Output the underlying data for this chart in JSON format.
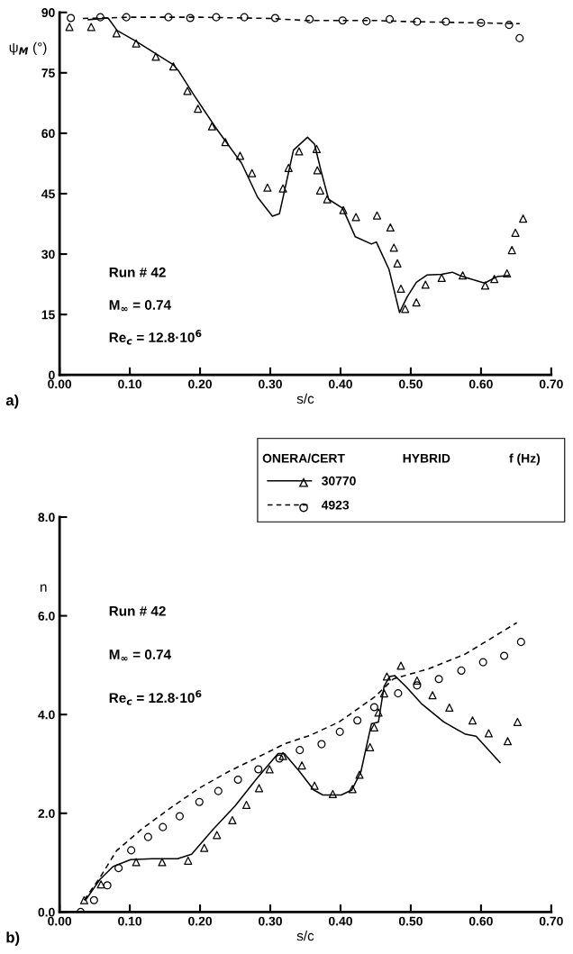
{
  "chart_data": [
    {
      "type": "scatter",
      "xlabel": "s/c",
      "ylabel": "ψ$_{M}$ (°)",
      "xlim": [
        0,
        0.7
      ],
      "ylim": [
        0,
        90
      ],
      "xticks": [
        {
          "value": 0,
          "label": "0.00"
        },
        {
          "value": 0.1,
          "label": "0.10"
        },
        {
          "value": 0.2,
          "label": "0.20"
        },
        {
          "value": 0.3,
          "label": "0.30"
        },
        {
          "value": 0.4,
          "label": "0.40"
        },
        {
          "value": 0.5,
          "label": "0.50"
        },
        {
          "value": 0.6,
          "label": "0.60"
        },
        {
          "value": 0.7,
          "label": "0.70"
        }
      ],
      "yticks": [
        0,
        15,
        30,
        45,
        60,
        75,
        90
      ],
      "annotations": [
        "a)",
        "Run # 42",
        "M$_{∞}$ = 0.74",
        "Re$_{c}$ = 12.8·10$^{6}$"
      ],
      "series": [
        {
          "type": "scatter",
          "marker": "triangle",
          "color": "#000000",
          "x": [
            0.014,
            0.045,
            0.081,
            0.109,
            0.137,
            0.162,
            0.182,
            0.197,
            0.217,
            0.236,
            0.257,
            0.274,
            0.296,
            0.318,
            0.326,
            0.341,
            0.366,
            0.367,
            0.371,
            0.381,
            0.404,
            0.422,
            0.452,
            0.471,
            0.476,
            0.481,
            0.486,
            0.492,
            0.508,
            0.521,
            0.544,
            0.574,
            0.606,
            0.619,
            0.637,
            0.644,
            0.649,
            0.66
          ],
          "values": [
            86.4,
            86.4,
            84.8,
            82.3,
            79.0,
            76.6,
            70.5,
            66.1,
            61.7,
            57.8,
            54.4,
            50.1,
            46.5,
            46.3,
            51.4,
            55.5,
            56.1,
            50.8,
            45.8,
            43.6,
            40.9,
            39.2,
            39.6,
            36.6,
            31.6,
            27.7,
            21.4,
            16.4,
            18.0,
            22.4,
            24.1,
            24.7,
            22.2,
            23.8,
            25.2,
            31.0,
            35.3,
            38.8
          ]
        },
        {
          "type": "scatter",
          "marker": "circle",
          "color": "#000000",
          "x": [
            0.016,
            0.058,
            0.095,
            0.155,
            0.186,
            0.223,
            0.263,
            0.307,
            0.356,
            0.403,
            0.437,
            0.47,
            0.509,
            0.55,
            0.6,
            0.64,
            0.655
          ],
          "values": [
            88.6,
            88.8,
            88.8,
            88.8,
            88.6,
            88.8,
            88.8,
            88.6,
            88.3,
            88.0,
            87.8,
            88.3,
            87.7,
            87.7,
            87.4,
            86.9,
            83.6
          ]
        },
        {
          "type": "line",
          "line_style": "solid",
          "color": "#000000",
          "x": [
            0.041,
            0.069,
            0.082,
            0.109,
            0.162,
            0.169,
            0.192,
            0.223,
            0.259,
            0.282,
            0.303,
            0.313,
            0.333,
            0.353,
            0.363,
            0.372,
            0.383,
            0.403,
            0.421,
            0.444,
            0.451,
            0.469,
            0.484,
            0.495,
            0.508,
            0.523,
            0.544,
            0.559,
            0.574,
            0.605,
            0.623,
            0.639
          ],
          "values": [
            88.2,
            88.6,
            85.5,
            82.8,
            77.0,
            75.6,
            69.3,
            61.2,
            52.6,
            44.1,
            39.4,
            40.0,
            55.8,
            59.0,
            57.3,
            50.8,
            43.6,
            41.4,
            34.3,
            32.5,
            33.0,
            26.2,
            15.5,
            19.4,
            23.0,
            24.8,
            25.0,
            25.5,
            24.4,
            22.8,
            24.4,
            24.7
          ]
        },
        {
          "type": "line",
          "line_style": "dashed",
          "color": "#000000",
          "x": [
            0.033,
            0.1,
            0.2,
            0.3,
            0.35,
            0.45,
            0.5,
            0.6,
            0.655
          ],
          "values": [
            88.5,
            88.8,
            88.8,
            88.5,
            88.0,
            88.0,
            87.7,
            87.4,
            87.2
          ]
        }
      ]
    },
    {
      "type": "scatter",
      "xlabel": "s/c",
      "ylabel": "n",
      "xlim": [
        0,
        0.7
      ],
      "ylim": [
        0,
        8
      ],
      "xticks": [
        {
          "value": 0,
          "label": "0.00"
        },
        {
          "value": 0.1,
          "label": "0.10"
        },
        {
          "value": 0.2,
          "label": "0.20"
        },
        {
          "value": 0.3,
          "label": "0.30"
        },
        {
          "value": 0.4,
          "label": "0.40"
        },
        {
          "value": 0.5,
          "label": "0.50"
        },
        {
          "value": 0.6,
          "label": "0.60"
        },
        {
          "value": 0.7,
          "label": "0.70"
        }
      ],
      "yticks": [
        {
          "value": 0,
          "label": "0.0"
        },
        {
          "value": 2,
          "label": "2.0"
        },
        {
          "value": 4,
          "label": "4.0"
        },
        {
          "value": 6,
          "label": "6.0"
        },
        {
          "value": 8,
          "label": "8.0"
        }
      ],
      "legend": "top right",
      "annotations": [
        "b)",
        "Run # 42",
        "M$_{∞}$ = 0.74",
        "Re$_{c}$ = 12.8·10$^{6}$",
        "ONERA/CERT",
        "HYBRID",
        "f (Hz)"
      ],
      "series": [
        {
          "type": "scatter",
          "marker": "triangle",
          "color": "#000000",
          "x": [
            0.035,
            0.059,
            0.109,
            0.146,
            0.183,
            0.206,
            0.224,
            0.246,
            0.266,
            0.284,
            0.299,
            0.318,
            0.345,
            0.363,
            0.389,
            0.417,
            0.427,
            0.442,
            0.448,
            0.454,
            0.462,
            0.466,
            0.486,
            0.509,
            0.531,
            0.555,
            0.588,
            0.611,
            0.638,
            0.652
          ],
          "values": [
            0.24,
            0.56,
            1.01,
            1.01,
            1.04,
            1.3,
            1.56,
            1.86,
            2.17,
            2.51,
            2.89,
            3.16,
            2.97,
            2.56,
            2.39,
            2.49,
            2.78,
            3.34,
            3.74,
            4.04,
            4.43,
            4.77,
            4.99,
            4.69,
            4.39,
            4.14,
            3.88,
            3.62,
            3.46,
            3.85
          ]
        },
        {
          "type": "scatter",
          "marker": "circle",
          "color": "#000000",
          "x": [
            0.03,
            0.049,
            0.068,
            0.084,
            0.102,
            0.126,
            0.147,
            0.171,
            0.199,
            0.226,
            0.254,
            0.283,
            0.313,
            0.342,
            0.373,
            0.399,
            0.424,
            0.448,
            0.482,
            0.509,
            0.54,
            0.572,
            0.603,
            0.633,
            0.657
          ],
          "values": [
            0.0,
            0.24,
            0.54,
            0.89,
            1.25,
            1.52,
            1.72,
            1.94,
            2.23,
            2.45,
            2.68,
            2.89,
            3.11,
            3.28,
            3.4,
            3.65,
            3.88,
            4.15,
            4.43,
            4.59,
            4.72,
            4.89,
            5.06,
            5.19,
            5.47
          ]
        },
        {
          "type": "line",
          "name": "30770",
          "line_style": "solid",
          "color": "#000000",
          "x": [
            0.037,
            0.058,
            0.076,
            0.101,
            0.132,
            0.168,
            0.188,
            0.219,
            0.25,
            0.28,
            0.311,
            0.32,
            0.342,
            0.362,
            0.375,
            0.401,
            0.416,
            0.429,
            0.444,
            0.454,
            0.462,
            0.47,
            0.477,
            0.493,
            0.516,
            0.547,
            0.578,
            0.593,
            0.627
          ],
          "values": [
            0.24,
            0.67,
            0.92,
            1.06,
            1.08,
            1.08,
            1.17,
            1.68,
            2.15,
            2.69,
            3.21,
            3.21,
            2.84,
            2.47,
            2.37,
            2.37,
            2.47,
            2.84,
            3.81,
            3.85,
            4.57,
            4.77,
            4.79,
            4.57,
            4.21,
            3.85,
            3.6,
            3.56,
            3.03
          ]
        },
        {
          "type": "line",
          "name": "4923",
          "line_style": "dashed",
          "color": "#000000",
          "x": [
            0.035,
            0.058,
            0.081,
            0.117,
            0.158,
            0.199,
            0.24,
            0.28,
            0.321,
            0.357,
            0.398,
            0.449,
            0.475,
            0.526,
            0.577,
            0.628,
            0.651
          ],
          "values": [
            0.24,
            0.71,
            1.24,
            1.68,
            2.11,
            2.51,
            2.84,
            3.12,
            3.41,
            3.58,
            3.85,
            4.36,
            4.72,
            4.93,
            5.22,
            5.66,
            5.86
          ]
        }
      ]
    }
  ]
}
